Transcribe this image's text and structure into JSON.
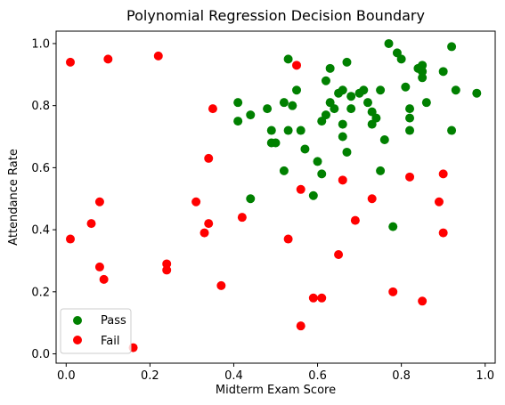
{
  "chart_data": {
    "type": "scatter",
    "title": "Polynomial Regression Decision Boundary",
    "xlabel": "Midterm Exam Score",
    "ylabel": "Attendance Rate",
    "xlim": [
      -0.024,
      1.024
    ],
    "ylim": [
      -0.03,
      1.04
    ],
    "xticks": [
      "0.0",
      "0.2",
      "0.4",
      "0.6",
      "0.8",
      "1.0"
    ],
    "yticks": [
      "0.0",
      "0.2",
      "0.4",
      "0.6",
      "0.8",
      "1.0"
    ],
    "grid": false,
    "legend_position": "lower-left",
    "series": [
      {
        "name": "Pass",
        "color": "#008000",
        "points": [
          [
            0.41,
            0.81
          ],
          [
            0.41,
            0.75
          ],
          [
            0.44,
            0.77
          ],
          [
            0.44,
            0.5
          ],
          [
            0.48,
            0.79
          ],
          [
            0.49,
            0.72
          ],
          [
            0.49,
            0.68
          ],
          [
            0.5,
            0.68
          ],
          [
            0.52,
            0.59
          ],
          [
            0.52,
            0.81
          ],
          [
            0.53,
            0.95
          ],
          [
            0.53,
            0.72
          ],
          [
            0.54,
            0.8
          ],
          [
            0.55,
            0.85
          ],
          [
            0.56,
            0.72
          ],
          [
            0.57,
            0.66
          ],
          [
            0.59,
            0.51
          ],
          [
            0.6,
            0.62
          ],
          [
            0.61,
            0.58
          ],
          [
            0.61,
            0.75
          ],
          [
            0.62,
            0.77
          ],
          [
            0.62,
            0.88
          ],
          [
            0.63,
            0.81
          ],
          [
            0.63,
            0.92
          ],
          [
            0.64,
            0.79
          ],
          [
            0.65,
            0.84
          ],
          [
            0.66,
            0.85
          ],
          [
            0.66,
            0.74
          ],
          [
            0.66,
            0.7
          ],
          [
            0.67,
            0.65
          ],
          [
            0.67,
            0.94
          ],
          [
            0.68,
            0.83
          ],
          [
            0.68,
            0.79
          ],
          [
            0.7,
            0.84
          ],
          [
            0.71,
            0.85
          ],
          [
            0.72,
            0.81
          ],
          [
            0.73,
            0.78
          ],
          [
            0.73,
            0.74
          ],
          [
            0.74,
            0.76
          ],
          [
            0.75,
            0.85
          ],
          [
            0.75,
            0.59
          ],
          [
            0.76,
            0.69
          ],
          [
            0.77,
            1.0
          ],
          [
            0.78,
            0.41
          ],
          [
            0.79,
            0.97
          ],
          [
            0.8,
            0.95
          ],
          [
            0.81,
            0.86
          ],
          [
            0.82,
            0.79
          ],
          [
            0.82,
            0.76
          ],
          [
            0.82,
            0.72
          ],
          [
            0.84,
            0.92
          ],
          [
            0.85,
            0.93
          ],
          [
            0.85,
            0.91
          ],
          [
            0.85,
            0.89
          ],
          [
            0.86,
            0.81
          ],
          [
            0.9,
            0.91
          ],
          [
            0.92,
            0.99
          ],
          [
            0.92,
            0.72
          ],
          [
            0.93,
            0.85
          ],
          [
            0.98,
            0.84
          ]
        ]
      },
      {
        "name": "Fail",
        "color": "#ff0000",
        "points": [
          [
            0.01,
            0.94
          ],
          [
            0.01,
            0.37
          ],
          [
            0.06,
            0.42
          ],
          [
            0.08,
            0.49
          ],
          [
            0.08,
            0.28
          ],
          [
            0.09,
            0.24
          ],
          [
            0.1,
            0.95
          ],
          [
            0.16,
            0.02
          ],
          [
            0.22,
            0.96
          ],
          [
            0.24,
            0.29
          ],
          [
            0.24,
            0.27
          ],
          [
            0.31,
            0.49
          ],
          [
            0.33,
            0.39
          ],
          [
            0.34,
            0.63
          ],
          [
            0.34,
            0.42
          ],
          [
            0.35,
            0.79
          ],
          [
            0.37,
            0.22
          ],
          [
            0.42,
            0.44
          ],
          [
            0.53,
            0.37
          ],
          [
            0.55,
            0.93
          ],
          [
            0.56,
            0.53
          ],
          [
            0.56,
            0.09
          ],
          [
            0.59,
            0.18
          ],
          [
            0.61,
            0.18
          ],
          [
            0.65,
            0.32
          ],
          [
            0.66,
            0.56
          ],
          [
            0.69,
            0.43
          ],
          [
            0.73,
            0.5
          ],
          [
            0.78,
            0.2
          ],
          [
            0.82,
            0.57
          ],
          [
            0.85,
            0.17
          ],
          [
            0.89,
            0.49
          ],
          [
            0.9,
            0.58
          ],
          [
            0.9,
            0.39
          ]
        ]
      }
    ]
  }
}
